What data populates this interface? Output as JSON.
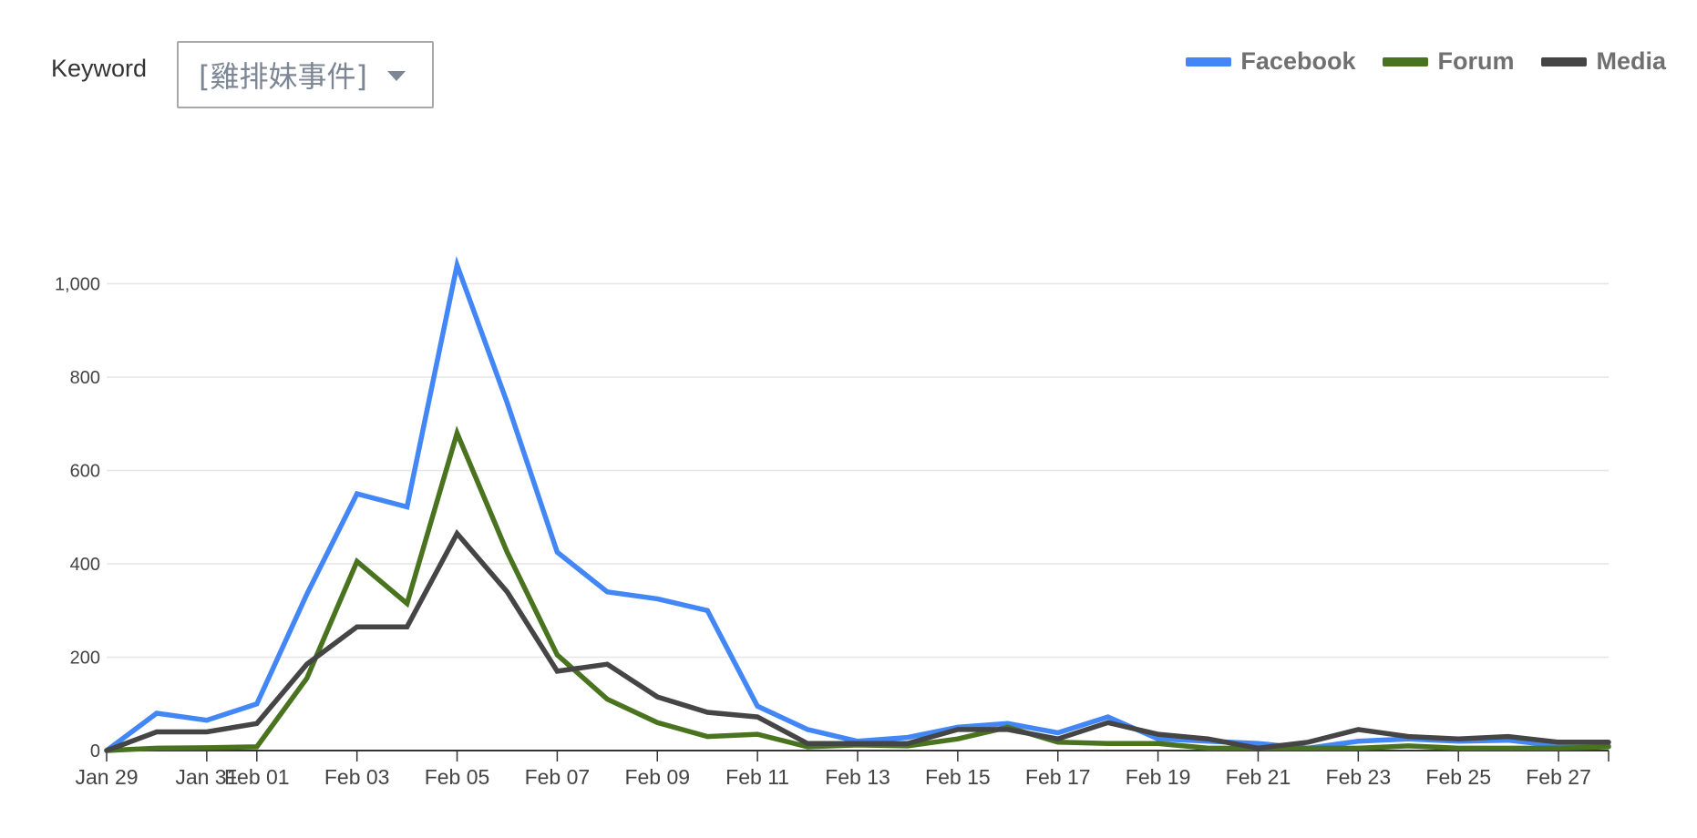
{
  "filter": {
    "label": "Keyword",
    "selected": "[雞排妹事件]"
  },
  "colors": {
    "facebook": "#4287f5",
    "forum": "#4a7320",
    "media": "#454545",
    "grid": "#e6e6e6",
    "axis": "#333333",
    "tick_text": "#444444"
  },
  "chart_data": {
    "type": "line",
    "x": [
      "Jan 29",
      "Jan 30",
      "Jan 31",
      "Feb 01",
      "Feb 02",
      "Feb 03",
      "Feb 04",
      "Feb 05",
      "Feb 06",
      "Feb 07",
      "Feb 08",
      "Feb 09",
      "Feb 10",
      "Feb 11",
      "Feb 12",
      "Feb 13",
      "Feb 14",
      "Feb 15",
      "Feb 16",
      "Feb 17",
      "Feb 18",
      "Feb 19",
      "Feb 20",
      "Feb 21",
      "Feb 22",
      "Feb 23",
      "Feb 24",
      "Feb 25",
      "Feb 26",
      "Feb 27",
      "Feb 28"
    ],
    "x_tick_labels": [
      "Jan 29",
      "Jan 31",
      "Feb 01",
      "Feb 03",
      "Feb 05",
      "Feb 07",
      "Feb 09",
      "Feb 11",
      "Feb 13",
      "Feb 15",
      "Feb 17",
      "Feb 19",
      "Feb 21",
      "Feb 23",
      "Feb 25",
      "Feb 27"
    ],
    "y_tick_labels": [
      "0",
      "200",
      "400",
      "600",
      "800",
      "1,000"
    ],
    "y_ticks": [
      0,
      200,
      400,
      600,
      800,
      1000
    ],
    "ylim": [
      0,
      1100
    ],
    "grid": true,
    "legend_position": "top-right",
    "series": [
      {
        "name": "Facebook",
        "color_key": "facebook",
        "values": [
          0,
          80,
          65,
          100,
          335,
          550,
          522,
          1040,
          745,
          425,
          340,
          325,
          300,
          95,
          45,
          20,
          28,
          50,
          58,
          38,
          72,
          25,
          20,
          15,
          5,
          20,
          25,
          20,
          22,
          10,
          10
        ]
      },
      {
        "name": "Forum",
        "color_key": "forum",
        "values": [
          0,
          5,
          6,
          8,
          155,
          405,
          315,
          680,
          425,
          205,
          110,
          60,
          30,
          35,
          8,
          12,
          10,
          25,
          50,
          18,
          15,
          15,
          5,
          5,
          5,
          5,
          10,
          5,
          5,
          5,
          8
        ]
      },
      {
        "name": "Media",
        "color_key": "media",
        "values": [
          0,
          40,
          40,
          58,
          185,
          265,
          265,
          465,
          340,
          170,
          185,
          115,
          82,
          72,
          15,
          15,
          15,
          45,
          45,
          25,
          60,
          35,
          25,
          5,
          18,
          45,
          30,
          25,
          30,
          18,
          18
        ]
      }
    ]
  }
}
